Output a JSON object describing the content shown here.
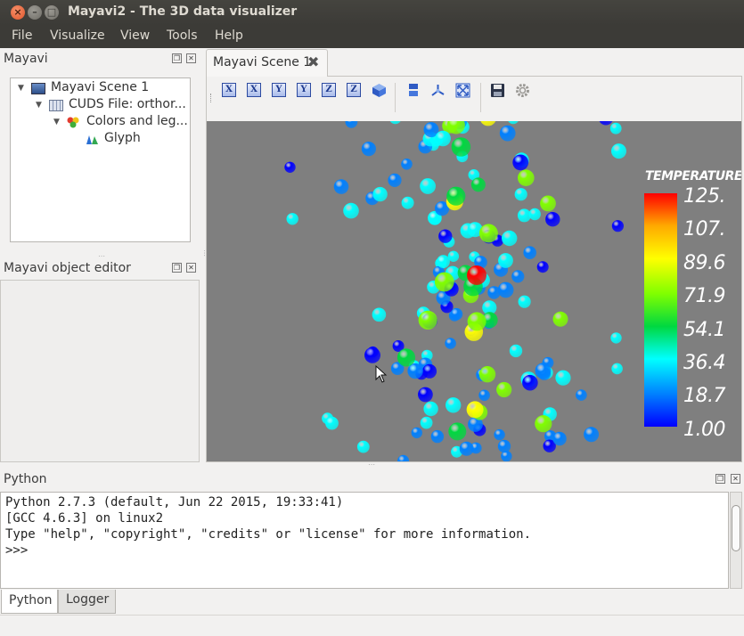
{
  "window": {
    "title": "Mayavi2 - The 3D data visualizer"
  },
  "menu": [
    "File",
    "Visualize",
    "View",
    "Tools",
    "Help"
  ],
  "mayavi_panel": {
    "title": "Mayavi",
    "tree": [
      {
        "label": "Mayavi Scene 1",
        "icon": "scene-icon"
      },
      {
        "label": "CUDS File: orthor...",
        "icon": "data-source-icon"
      },
      {
        "label": "Colors and leg...",
        "icon": "module-manager-icon"
      },
      {
        "label": "Glyph",
        "icon": "glyph-icon"
      }
    ]
  },
  "editor_panel": {
    "title": "Mayavi object editor"
  },
  "scene": {
    "tab_label": "Mayavi Scene 1",
    "toolbar": [
      {
        "glyph": "X",
        "icon": "view-x-plus-icon"
      },
      {
        "glyph": "X",
        "icon": "view-x-minus-icon"
      },
      {
        "glyph": "Y",
        "icon": "view-y-plus-icon"
      },
      {
        "glyph": "Y",
        "icon": "view-y-minus-icon"
      },
      {
        "glyph": "Z",
        "icon": "view-z-plus-icon"
      },
      {
        "glyph": "Z",
        "icon": "view-z-minus-icon"
      },
      {
        "glyph": "",
        "icon": "isometric-view-icon"
      },
      {
        "glyph": "",
        "icon": "parallel-projection-icon"
      },
      {
        "glyph": "",
        "icon": "axes-icon"
      },
      {
        "glyph": "",
        "icon": "full-screen-icon"
      },
      {
        "glyph": "",
        "icon": "save-icon"
      },
      {
        "glyph": "",
        "icon": "configure-icon"
      }
    ],
    "colorbar": {
      "title": "TEMPERATURE",
      "labels": [
        "125.",
        "107.",
        "89.6",
        "71.9",
        "54.1",
        "36.4",
        "18.7",
        "1.00"
      ],
      "colors": [
        "#ff0000",
        "#ffaa00",
        "#ffff00",
        "#80ff00",
        "#00d840",
        "#00ffff",
        "#0080ff",
        "#0000ff"
      ]
    },
    "background_color": "#7f7f7f"
  },
  "python_panel": {
    "title": "Python",
    "lines": [
      "Python 2.7.3 (default, Jun 22 2015, 19:33:41)",
      "[GCC 4.6.3] on linux2",
      "Type \"help\", \"copyright\", \"credits\" or \"license\" for more information.",
      ">>>"
    ],
    "tabs": [
      "Python",
      "Logger"
    ]
  }
}
